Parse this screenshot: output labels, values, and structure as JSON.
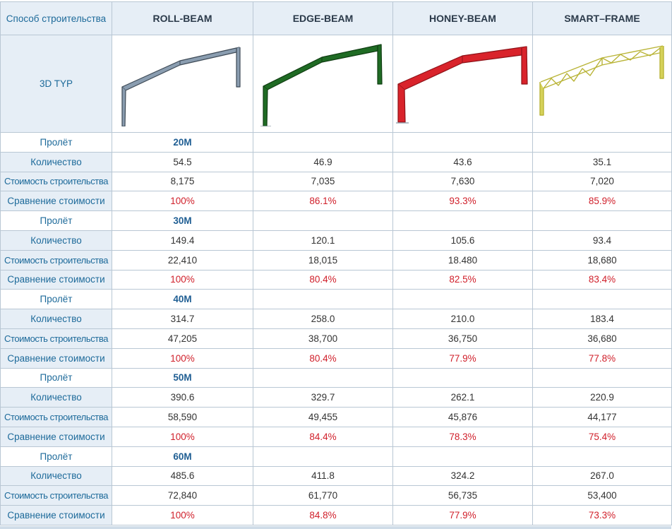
{
  "header": {
    "method_label": "Способ строительства",
    "columns": [
      "ROLL-BEAM",
      "EDGE-BEAM",
      "HONEY-BEAM",
      "SMART–FRAME"
    ]
  },
  "image_row": {
    "label": "3D TYP",
    "images": [
      {
        "icon": "roll-beam-frame-icon",
        "color": "#7f93a6"
      },
      {
        "icon": "edge-beam-frame-icon",
        "color": "#1e6b22"
      },
      {
        "icon": "honey-beam-frame-icon",
        "color": "#d9232b"
      },
      {
        "icon": "smart-frame-truss-icon",
        "color": "#c9c44a"
      }
    ]
  },
  "row_labels": {
    "span": "Пролёт",
    "quantity": "Количество",
    "cost": "Стоимость строительства",
    "comparison": "Сравнение стоимости"
  },
  "groups": [
    {
      "span": "20M",
      "quantity": [
        "54.5",
        "46.9",
        "43.6",
        "35.1"
      ],
      "cost": [
        "8,175",
        "7,035",
        "7,630",
        "7,020"
      ],
      "comparison": [
        "100%",
        "86.1%",
        "93.3%",
        "85.9%"
      ]
    },
    {
      "span": "30M",
      "quantity": [
        "149.4",
        "120.1",
        "105.6",
        "93.4"
      ],
      "cost": [
        "22,410",
        "18,015",
        "18.480",
        "18,680"
      ],
      "comparison": [
        "100%",
        "80.4%",
        "82.5%",
        "83.4%"
      ]
    },
    {
      "span": "40M",
      "quantity": [
        "314.7",
        "258.0",
        "210.0",
        "183.4"
      ],
      "cost": [
        "47,205",
        "38,700",
        "36,750",
        "36,680"
      ],
      "comparison": [
        "100%",
        "80.4%",
        "77.9%",
        "77.8%"
      ]
    },
    {
      "span": "50M",
      "quantity": [
        "390.6",
        "329.7",
        "262.1",
        "220.9"
      ],
      "cost": [
        "58,590",
        "49,455",
        "45,876",
        "44,177"
      ],
      "comparison": [
        "100%",
        "84.4%",
        "78.3%",
        "75.4%"
      ]
    },
    {
      "span": "60M",
      "quantity": [
        "485.6",
        "411.8",
        "324.2",
        "267.0"
      ],
      "cost": [
        "72,840",
        "61,770",
        "56,735",
        "53,400"
      ],
      "comparison": [
        "100%",
        "84.8%",
        "77.9%",
        "73.3%"
      ]
    }
  ]
}
